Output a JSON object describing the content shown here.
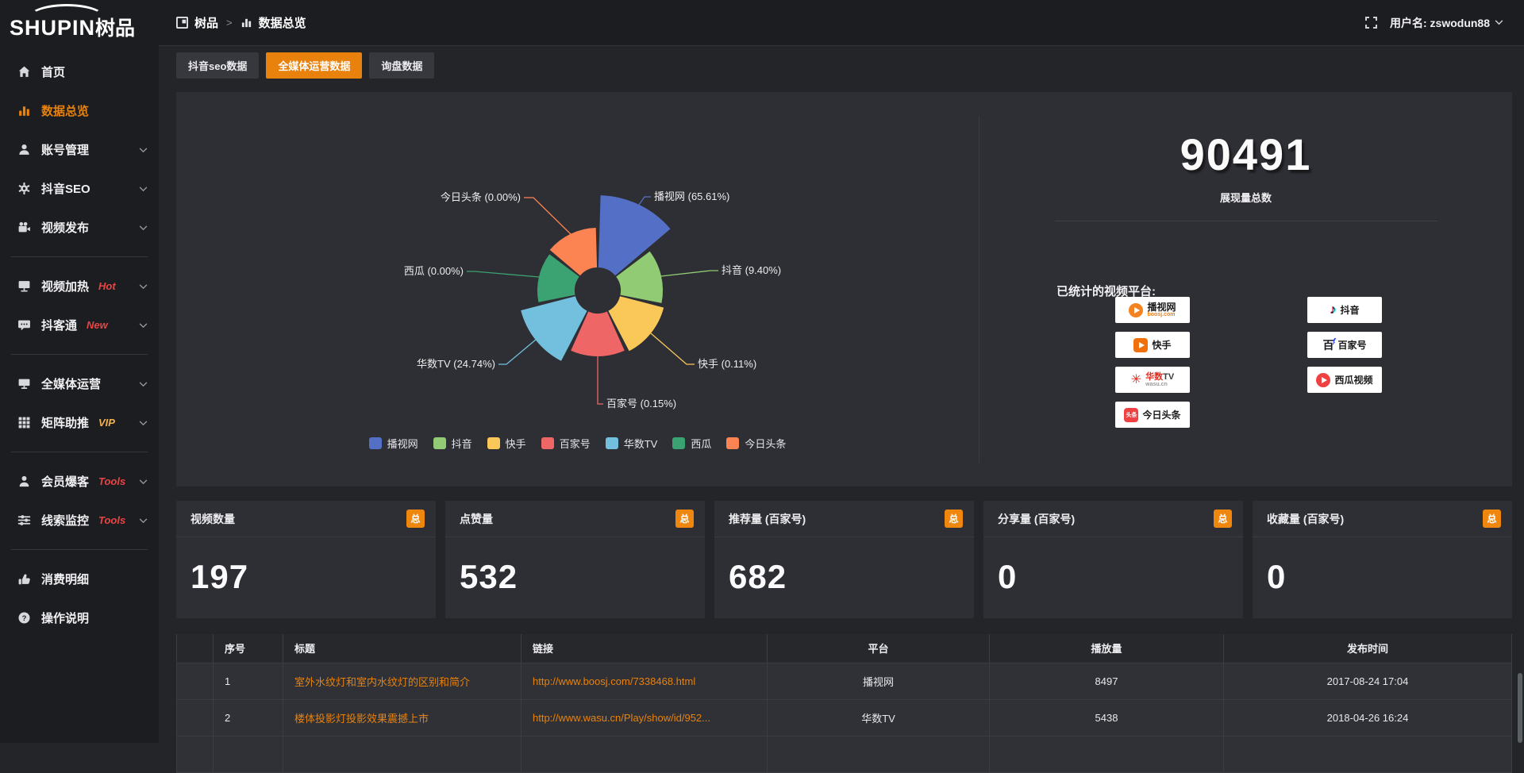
{
  "app": {
    "logo_en": "SHUPIN",
    "logo_cn": "树品"
  },
  "topbar": {
    "breadcrumb": {
      "root": "树品",
      "separator": ">",
      "current": "数据总览"
    },
    "username": "用户名: zswodun88"
  },
  "sidebar": {
    "accent_color": "#e8820d",
    "items": [
      {
        "icon": "home",
        "label": "首页"
      },
      {
        "icon": "bars",
        "label": "数据总览",
        "active": true
      },
      {
        "icon": "user",
        "label": "账号管理",
        "chevron": true
      },
      {
        "icon": "gear",
        "label": "抖音SEO",
        "chevron": true
      },
      {
        "icon": "video",
        "label": "视频发布",
        "chevron": true
      },
      {
        "divider": true
      },
      {
        "icon": "board",
        "label": "视频加热",
        "badge": "Hot",
        "badge_color": "#e84545",
        "chevron": true
      },
      {
        "icon": "chat",
        "label": "抖客通",
        "badge": "New",
        "badge_color": "#e84545",
        "chevron": true
      },
      {
        "divider": true
      },
      {
        "icon": "monitor",
        "label": "全媒体运营",
        "chevron": true
      },
      {
        "icon": "grid",
        "label": "矩阵助推",
        "badge": "VIP",
        "badge_color": "#f0b24a",
        "chevron": true
      },
      {
        "divider": true
      },
      {
        "icon": "person",
        "label": "会员爆客",
        "badge": "Tools",
        "badge_color": "#e84545",
        "chevron": true
      },
      {
        "icon": "sliders",
        "label": "线索监控",
        "badge": "Tools",
        "badge_color": "#e84545",
        "chevron": true
      },
      {
        "divider": true
      },
      {
        "icon": "wallet",
        "label": "消费明细"
      },
      {
        "icon": "help",
        "label": "操作说明"
      }
    ]
  },
  "tabs": [
    {
      "label": "抖音seo数据",
      "active": false
    },
    {
      "label": "全媒体运营数据",
      "active": true
    },
    {
      "label": "询盘数据",
      "active": false
    }
  ],
  "chart_data": {
    "type": "pie",
    "subtype": "nightingale-rose",
    "equal_angles": true,
    "start_angle_deg": 0,
    "inner_radius": 29,
    "slices": [
      {
        "name": "播视网",
        "percent": 65.61,
        "label": "播视网 (65.61%)",
        "color": "#5470c6",
        "radius": 120
      },
      {
        "name": "抖音",
        "percent": 9.4,
        "label": "抖音 (9.40%)",
        "color": "#91cc75",
        "radius": 82
      },
      {
        "name": "快手",
        "percent": 0.11,
        "label": "快手 (0.11%)",
        "color": "#fac858",
        "radius": 86
      },
      {
        "name": "百家号",
        "percent": 0.15,
        "label": "百家号 (0.15%)",
        "color": "#ee6666",
        "radius": 83
      },
      {
        "name": "华数TV",
        "percent": 24.74,
        "label": "华数TV (24.74%)",
        "color": "#73c0de",
        "radius": 100
      },
      {
        "name": "西瓜",
        "percent": 0.0,
        "label": "西瓜 (0.00%)",
        "color": "#3ba272",
        "radius": 76
      },
      {
        "name": "今日头条",
        "percent": 0.0,
        "label": "今日头条 (0.00%)",
        "color": "#fc8452",
        "radius": 79
      }
    ],
    "legend": [
      "播视网",
      "抖音",
      "快手",
      "百家号",
      "华数TV",
      "西瓜",
      "今日头条"
    ],
    "legend_position": "bottom"
  },
  "summary": {
    "total_value": "90491",
    "total_label": "展现量总数",
    "platforms_label": "已统计的视频平台:",
    "platforms_left": [
      {
        "name": "播视网",
        "sub": "boosj.com",
        "logo": "boosj"
      },
      {
        "name": "快手",
        "logo": "kuaishou"
      },
      {
        "name": "华数TV",
        "sub": "wasu.cn",
        "logo": "wasu"
      },
      {
        "name": "今日头条",
        "logo": "toutiao"
      }
    ],
    "platforms_right": [
      {
        "name": "抖音",
        "logo": "douyin"
      },
      {
        "name": "百家号",
        "logo": "baijia"
      },
      {
        "name": "西瓜视频",
        "logo": "xigua"
      }
    ]
  },
  "stat_cards": [
    {
      "title": "视频数量",
      "badge": "总",
      "value": "197"
    },
    {
      "title": "点赞量",
      "badge": "总",
      "value": "532"
    },
    {
      "title": "推荐量 (百家号)",
      "badge": "总",
      "value": "682"
    },
    {
      "title": "分享量 (百家号)",
      "badge": "总",
      "value": "0"
    },
    {
      "title": "收藏量 (百家号)",
      "badge": "总",
      "value": "0"
    }
  ],
  "table": {
    "headers": [
      "序号",
      "标题",
      "链接",
      "平台",
      "播放量",
      "发布时间"
    ],
    "rows": [
      {
        "seq": "1",
        "title": "室外水纹灯和室内水纹灯的区别和简介",
        "link": "http://www.boosj.com/7338468.html",
        "platform": "播视网",
        "plays": "8497",
        "time": "2017-08-24 17:04"
      },
      {
        "seq": "2",
        "title": "楼体投影灯投影效果震撼上市",
        "link": "http://www.wasu.cn/Play/show/id/952...",
        "platform": "华数TV",
        "plays": "5438",
        "time": "2018-04-26 16:24"
      },
      {
        "seq": "",
        "title": "",
        "link": "",
        "platform": "",
        "plays": "",
        "time": ""
      }
    ]
  },
  "colors": {
    "accent_orange": "#e8820d",
    "page_bg": "#242529",
    "sidebar_bg": "#1c1d21",
    "panel_bg": "#2e2f34",
    "link_orange": "#e8820d"
  }
}
